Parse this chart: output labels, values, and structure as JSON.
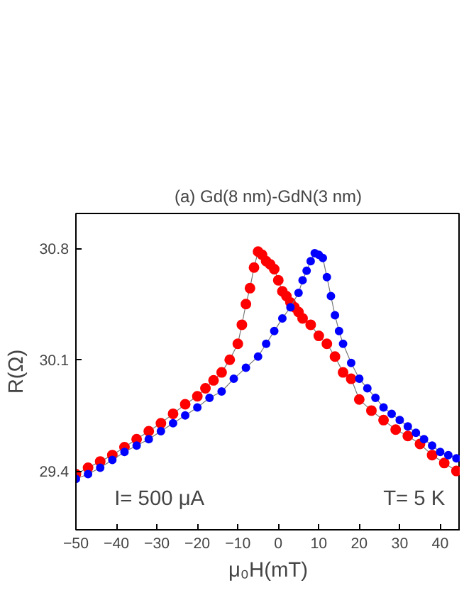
{
  "chart_data": {
    "type": "line",
    "title": "(a) Gd(8 nm)-GdN(3 nm)",
    "xlabel": "μ₀H(mT)",
    "ylabel": "R(Ω)",
    "xlim": [
      -50,
      45
    ],
    "ylim": [
      29.03,
      31.02
    ],
    "xticks": [
      -50,
      -40,
      -30,
      -20,
      -10,
      0,
      10,
      20,
      30,
      40
    ],
    "yticks": [
      29.4,
      30.1,
      30.8
    ],
    "grid": false,
    "marker": "circle",
    "annotations": [
      "I= 500 μA",
      "T= 5 K"
    ],
    "series": [
      {
        "color": "#ff0000",
        "x": [
          -50,
          -47,
          -44,
          -41,
          -38,
          -35,
          -32,
          -29,
          -26,
          -23,
          -20,
          -18,
          -16,
          -14,
          -12,
          -10,
          -9,
          -8,
          -7,
          -6,
          -5,
          -4,
          -3,
          -2,
          -1,
          0,
          1,
          2,
          3,
          4,
          5,
          6,
          8,
          10,
          12,
          14,
          16,
          18,
          20,
          23,
          26,
          29,
          32,
          35,
          38,
          41,
          44
        ],
        "values": [
          29.38,
          29.42,
          29.46,
          29.5,
          29.55,
          29.6,
          29.65,
          29.7,
          29.76,
          29.82,
          29.87,
          29.92,
          29.97,
          30.02,
          30.1,
          30.2,
          30.32,
          30.45,
          30.55,
          30.68,
          30.78,
          30.76,
          30.72,
          30.7,
          30.67,
          30.6,
          30.53,
          30.5,
          30.46,
          30.43,
          30.4,
          30.36,
          30.32,
          30.25,
          30.2,
          30.12,
          30.02,
          29.98,
          29.85,
          29.78,
          29.72,
          29.66,
          29.62,
          29.57,
          29.5,
          29.45,
          29.4
        ]
      },
      {
        "color": "#0000ff",
        "x": [
          -50,
          -47,
          -44,
          -41,
          -38,
          -35,
          -32,
          -29,
          -26,
          -23,
          -20,
          -17,
          -14,
          -11,
          -8,
          -5,
          -3,
          -1,
          1,
          3,
          5,
          6,
          7,
          8,
          9,
          10,
          11,
          12,
          13,
          14,
          15,
          16,
          18,
          20,
          22,
          24,
          26,
          28,
          30,
          32,
          34,
          36,
          38,
          40,
          42,
          44
        ],
        "values": [
          29.35,
          29.38,
          29.42,
          29.47,
          29.52,
          29.56,
          29.6,
          29.65,
          29.7,
          29.75,
          29.8,
          29.86,
          29.9,
          29.98,
          30.05,
          30.12,
          30.2,
          30.28,
          30.36,
          30.43,
          30.52,
          30.6,
          30.66,
          30.72,
          30.77,
          30.76,
          30.74,
          30.62,
          30.5,
          30.38,
          30.28,
          30.2,
          30.08,
          29.98,
          29.92,
          29.86,
          29.8,
          29.76,
          29.72,
          29.68,
          29.64,
          29.6,
          29.56,
          29.52,
          29.5,
          29.48
        ]
      }
    ]
  }
}
